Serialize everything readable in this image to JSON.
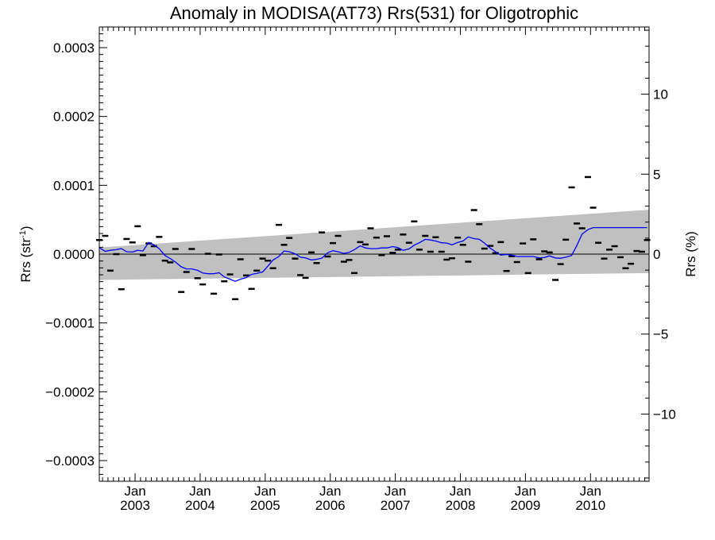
{
  "chart_data": {
    "type": "line",
    "title": "Anomaly in MODISA(AT73) Rrs(531) for Oligotrophic",
    "ylabel": "Rrs (str",
    "ylabel_superscript": "-1",
    "ylabel_suffix": ")",
    "y2label": "Rrs (%)",
    "xlim": [
      2002.45,
      2010.9
    ],
    "ylim": [
      -0.00033,
      0.00033
    ],
    "y2lim": [
      -14.2,
      14.2
    ],
    "x_ticks": [
      {
        "x": 2003.0,
        "line1": "Jan",
        "line2": "2003"
      },
      {
        "x": 2004.0,
        "line1": "Jan",
        "line2": "2004"
      },
      {
        "x": 2005.0,
        "line1": "Jan",
        "line2": "2005"
      },
      {
        "x": 2006.0,
        "line1": "Jan",
        "line2": "2006"
      },
      {
        "x": 2007.0,
        "line1": "Jan",
        "line2": "2007"
      },
      {
        "x": 2008.0,
        "line1": "Jan",
        "line2": "2008"
      },
      {
        "x": 2009.0,
        "line1": "Jan",
        "line2": "2009"
      },
      {
        "x": 2010.0,
        "line1": "Jan",
        "line2": "2010"
      }
    ],
    "y_ticks": [
      {
        "value": 0.0003,
        "label": "0.0003"
      },
      {
        "value": 0.0002,
        "label": "0.0002"
      },
      {
        "value": 0.0001,
        "label": "0.0001"
      },
      {
        "value": 0.0,
        "label": "0.0000"
      },
      {
        "value": -0.0001,
        "label": "−0.0001"
      },
      {
        "value": -0.0002,
        "label": "−0.0002"
      },
      {
        "value": -0.0003,
        "label": "−0.0003"
      }
    ],
    "y2_ticks": [
      {
        "value": 10,
        "label": "10"
      },
      {
        "value": 5,
        "label": "5"
      },
      {
        "value": 0,
        "label": "0"
      },
      {
        "value": -5,
        "label": "−5"
      },
      {
        "value": -10,
        "label": "−10"
      }
    ],
    "band": {
      "color": "#c0c0c0",
      "x": [
        2002.45,
        2010.9
      ],
      "upper": [
        9.5e-06,
        6.45e-05
      ],
      "lower": [
        -3.75e-05,
        -2.75e-05
      ]
    },
    "zero_line": true,
    "series": [
      {
        "kind": "markers",
        "color": "#000000",
        "x": [
          2002.45,
          2002.54,
          2002.62,
          2002.71,
          2002.79,
          2002.87,
          2002.96,
          2003.04,
          2003.12,
          2003.21,
          2003.29,
          2003.37,
          2003.46,
          2003.54,
          2003.62,
          2003.71,
          2003.79,
          2003.87,
          2003.96,
          2004.04,
          2004.12,
          2004.21,
          2004.29,
          2004.37,
          2004.46,
          2004.54,
          2004.62,
          2004.71,
          2004.79,
          2004.87,
          2004.96,
          2005.04,
          2005.12,
          2005.21,
          2005.29,
          2005.37,
          2005.46,
          2005.54,
          2005.62,
          2005.71,
          2005.79,
          2005.87,
          2005.96,
          2006.04,
          2006.12,
          2006.21,
          2006.29,
          2006.37,
          2006.46,
          2006.54,
          2006.62,
          2006.71,
          2006.79,
          2006.87,
          2006.96,
          2007.04,
          2007.12,
          2007.21,
          2007.29,
          2007.37,
          2007.46,
          2007.54,
          2007.62,
          2007.71,
          2007.79,
          2007.87,
          2007.96,
          2008.04,
          2008.12,
          2008.21,
          2008.29,
          2008.37,
          2008.46,
          2008.54,
          2008.62,
          2008.71,
          2008.79,
          2008.87,
          2008.96,
          2009.04,
          2009.12,
          2009.21,
          2009.29,
          2009.37,
          2009.46,
          2009.54,
          2009.62,
          2009.71,
          2009.79,
          2009.87,
          2009.96,
          2010.04,
          2010.12,
          2010.21,
          2010.29,
          2010.37,
          2010.46,
          2010.54,
          2010.62,
          2010.71,
          2010.79,
          2010.87
        ],
        "y": [
          2.05e-05,
          2.65e-05,
          -2.4e-05,
          0.0,
          -5.1e-05,
          2.2e-05,
          1.7e-05,
          4.05e-05,
          -1.5e-06,
          1.55e-05,
          1.15e-05,
          2.5e-05,
          -9.5e-06,
          -1.2e-05,
          7.5e-06,
          -5.5e-05,
          -2.6e-05,
          7.5e-06,
          -3.5e-05,
          -4.4e-05,
          5e-07,
          -5.75e-05,
          -5e-07,
          -3.95e-05,
          -2.95e-05,
          -6.55e-05,
          -7.5e-06,
          -3.1e-05,
          -5.05e-05,
          -2.4e-05,
          -6.5e-06,
          -9.5e-06,
          -2.05e-05,
          4.25e-05,
          1.35e-05,
          2.35e-05,
          -6.5e-06,
          -3.05e-05,
          -3.45e-05,
          2.5e-06,
          -1.3e-05,
          3.15e-05,
          -3.5e-06,
          1.6e-05,
          2.65e-05,
          -1.1e-05,
          -8.5e-06,
          -2.75e-05,
          1.75e-05,
          1.4e-05,
          3.75e-05,
          2.4e-05,
          -1.5e-06,
          2.6e-05,
          2e-06,
          6.5e-06,
          2.85e-05,
          1.65e-05,
          4.75e-05,
          6.5e-06,
          2.65e-05,
          3.5e-06,
          2.45e-05,
          3.5e-06,
          -8e-06,
          -6e-06,
          2.4e-05,
          1.35e-05,
          -1.1e-05,
          6.4e-05,
          4.35e-05,
          8e-06,
          1.2e-05,
          1.5e-06,
          1.75e-05,
          -2.45e-05,
          -3e-06,
          -1.15e-05,
          1.55e-05,
          -2.75e-05,
          2.15e-05,
          -7.5e-06,
          4e-06,
          2.5e-06,
          -3.75e-05,
          -1.45e-05,
          2.1e-05,
          9.7e-05,
          4.45e-05,
          3.75e-05,
          0.000112,
          6.75e-05,
          1.65e-05,
          -6.5e-06,
          6.5e-06,
          1.15e-05,
          -4.5e-06,
          -2.05e-05,
          -1.4e-05,
          4.5e-06,
          3.5e-06,
          2.05e-05
        ]
      },
      {
        "kind": "line",
        "color": "#0000ff",
        "x": [
          2002.45,
          2002.54,
          2002.62,
          2002.71,
          2002.79,
          2002.87,
          2002.96,
          2003.04,
          2003.12,
          2003.21,
          2003.29,
          2003.37,
          2003.46,
          2003.54,
          2003.62,
          2003.71,
          2003.79,
          2003.87,
          2003.96,
          2004.04,
          2004.12,
          2004.21,
          2004.29,
          2004.37,
          2004.46,
          2004.54,
          2004.62,
          2004.71,
          2004.79,
          2004.87,
          2004.96,
          2005.04,
          2005.12,
          2005.21,
          2005.29,
          2005.37,
          2005.46,
          2005.54,
          2005.62,
          2005.71,
          2005.79,
          2005.87,
          2005.96,
          2006.04,
          2006.12,
          2006.21,
          2006.29,
          2006.37,
          2006.46,
          2006.54,
          2006.62,
          2006.71,
          2006.79,
          2006.87,
          2006.96,
          2007.04,
          2007.12,
          2007.21,
          2007.29,
          2007.37,
          2007.46,
          2007.54,
          2007.62,
          2007.71,
          2007.79,
          2007.87,
          2007.96,
          2008.04,
          2008.12,
          2008.21,
          2008.29,
          2008.37,
          2008.46,
          2008.54,
          2008.62,
          2008.71,
          2008.79,
          2008.87,
          2008.96,
          2009.04,
          2009.12,
          2009.21,
          2009.29,
          2009.37,
          2009.46,
          2009.54,
          2009.62,
          2009.71,
          2009.79,
          2009.87,
          2009.96,
          2010.04,
          2010.12,
          2010.21,
          2010.29,
          2010.37,
          2010.46,
          2010.54,
          2010.62,
          2010.71,
          2010.79,
          2010.87
        ],
        "y": [
          9.5e-06,
          4e-06,
          5.5e-06,
          6.5e-06,
          8e-06,
          3.5e-06,
          3e-06,
          5.5e-06,
          4.5e-06,
          1.7e-05,
          1.35e-05,
          8e-06,
          -2e-06,
          -6.5e-06,
          -1.15e-05,
          -1.85e-05,
          -2.15e-05,
          -2.15e-05,
          -2.35e-05,
          -2.75e-05,
          -2.85e-05,
          -2.85e-05,
          -2.7e-05,
          -3.3e-05,
          -3.65e-05,
          -3.95e-05,
          -3.65e-05,
          -3.4e-05,
          -2.95e-05,
          -2.8e-05,
          -2.6e-05,
          -1.75e-05,
          -8.5e-06,
          -3.5e-06,
          4.5e-06,
          3.5e-06,
          5e-07,
          -4.5e-06,
          -5.5e-06,
          -8.5e-06,
          -7.5e-06,
          -6e-06,
          2e-06,
          5e-06,
          3.5e-06,
          1e-06,
          2.5e-06,
          6.5e-06,
          1.2e-05,
          9e-06,
          8e-06,
          8e-06,
          9e-06,
          9e-06,
          1.1e-05,
          9.5e-06,
          5.5e-06,
          7.5e-06,
          1.3e-05,
          1.65e-05,
          2.15e-05,
          2.05e-05,
          1.9e-05,
          1.65e-05,
          1.6e-05,
          1.35e-05,
          1.7e-05,
          1.9e-05,
          2.5e-05,
          2.25e-05,
          2.15e-05,
          1.6e-05,
          8.5e-06,
          3.5e-06,
          -1.5e-06,
          -5e-07,
          -1.5e-06,
          -3.5e-06,
          -3.5e-06,
          -3.5e-06,
          -3.5e-06,
          -5.5e-06,
          -5e-06,
          -2.5e-06,
          -5.5e-06,
          -6e-06,
          -4.5e-06,
          -2e-06,
          1.25e-05,
          2.9e-05,
          3.55e-05,
          3.85e-05,
          3.85e-05,
          3.85e-05,
          3.85e-05,
          3.85e-05,
          3.85e-05,
          3.85e-05,
          3.85e-05,
          3.85e-05,
          3.85e-05,
          3.85e-05
        ]
      }
    ]
  }
}
